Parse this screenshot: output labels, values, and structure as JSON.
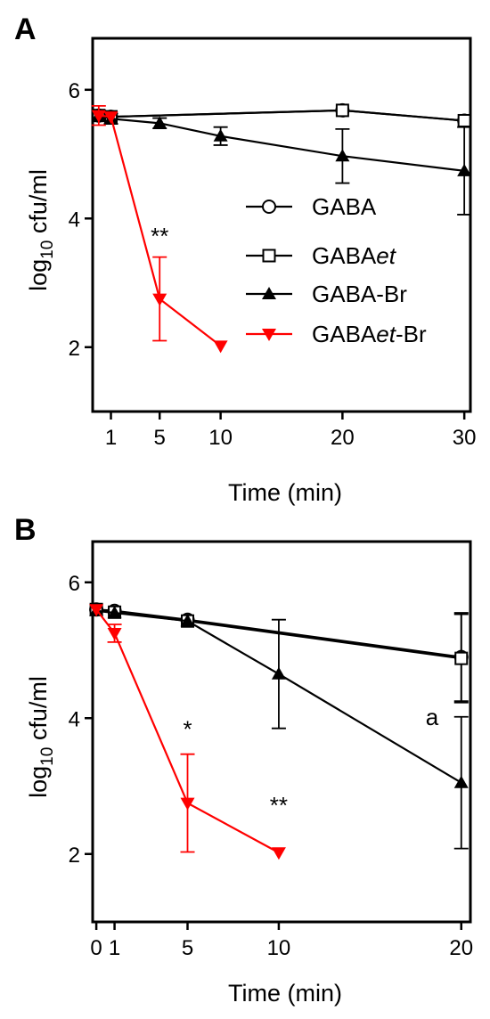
{
  "chart_data": [
    {
      "panel_label": "A",
      "type": "line",
      "xlabel": "Time (min)",
      "ylabel_main": "log",
      "ylabel_sub": "10",
      "ylabel_rest": " cfu/ml",
      "xlim": [
        -0.5,
        30.5
      ],
      "ylim": [
        1,
        6.8
      ],
      "xticks": [
        1,
        5,
        10,
        20,
        30
      ],
      "yticks": [
        2,
        4,
        6
      ],
      "legend_position": "center-right",
      "series": [
        {
          "name": "GABA",
          "name_main": "GABA",
          "name_italic": "",
          "name_tail": "",
          "marker": "circle",
          "color": "#000000",
          "x": [
            0,
            1,
            20,
            30
          ],
          "y": [
            5.6,
            5.58,
            5.68,
            5.52
          ],
          "err": [
            0.05,
            0.05,
            0.05,
            0.04
          ]
        },
        {
          "name": "GABAet",
          "name_main": "GABA",
          "name_italic": "et",
          "name_tail": "",
          "marker": "square",
          "color": "#000000",
          "x": [
            0,
            1,
            20,
            30
          ],
          "y": [
            5.6,
            5.58,
            5.68,
            5.52
          ],
          "err": [
            0.05,
            0.05,
            0.05,
            0.04
          ]
        },
        {
          "name": "GABA-Br",
          "name_main": "GABA-Br",
          "name_italic": "",
          "name_tail": "",
          "marker": "triangle-up",
          "color": "#000000",
          "x": [
            0,
            1,
            5,
            10,
            20,
            30
          ],
          "y": [
            5.6,
            5.55,
            5.48,
            5.28,
            4.97,
            4.74
          ],
          "err": [
            0.08,
            0.08,
            0.08,
            0.14,
            0.42,
            0.68
          ]
        },
        {
          "name": "GABAet-Br",
          "name_main": "GABA",
          "name_italic": "et",
          "name_tail": "-Br",
          "marker": "triangle-down",
          "color": "#ff0000",
          "x": [
            0,
            1,
            5,
            10
          ],
          "y": [
            5.6,
            5.58,
            2.75,
            2.02
          ],
          "err": [
            0.15,
            0.05,
            0.65,
            0
          ]
        }
      ],
      "annotations": [
        {
          "text": "**",
          "x": 5,
          "y": 3.6
        }
      ]
    },
    {
      "panel_label": "B",
      "type": "line",
      "xlabel": "Time (min)",
      "ylabel_main": "log",
      "ylabel_sub": "10",
      "ylabel_rest": " cfu/ml",
      "xlim": [
        -0.2,
        20.5
      ],
      "ylim": [
        1,
        6.6
      ],
      "xticks": [
        0,
        1,
        5,
        10,
        20
      ],
      "yticks": [
        2,
        4,
        6
      ],
      "series": [
        {
          "name": "GABA",
          "marker": "circle",
          "color": "#000000",
          "x": [
            0,
            1,
            5,
            20
          ],
          "y": [
            5.6,
            5.58,
            5.45,
            4.9
          ],
          "err": [
            0.05,
            0.05,
            0.05,
            0.65
          ]
        },
        {
          "name": "GABAet",
          "marker": "square",
          "color": "#000000",
          "x": [
            0,
            1,
            5,
            20
          ],
          "y": [
            5.6,
            5.56,
            5.43,
            4.88
          ],
          "err": [
            0.05,
            0.05,
            0.05,
            0.65
          ]
        },
        {
          "name": "GABA-Br",
          "marker": "triangle-up",
          "color": "#000000",
          "x": [
            0,
            1,
            5,
            10,
            20
          ],
          "y": [
            5.58,
            5.55,
            5.43,
            4.65,
            3.05
          ],
          "err": [
            0.05,
            0.05,
            0.05,
            0.8,
            0.97
          ]
        },
        {
          "name": "GABAet-Br",
          "marker": "triangle-down",
          "color": "#ff0000",
          "x": [
            0,
            1,
            5,
            10
          ],
          "y": [
            5.6,
            5.25,
            2.75,
            2.02
          ],
          "err": [
            0.05,
            0.13,
            0.72,
            0
          ]
        }
      ],
      "annotations": [
        {
          "text": "*",
          "x": 5,
          "y": 3.72
        },
        {
          "text": "**",
          "x": 10,
          "y": 2.6
        },
        {
          "text": "a",
          "x": 18.4,
          "y": 3.9
        }
      ]
    }
  ]
}
